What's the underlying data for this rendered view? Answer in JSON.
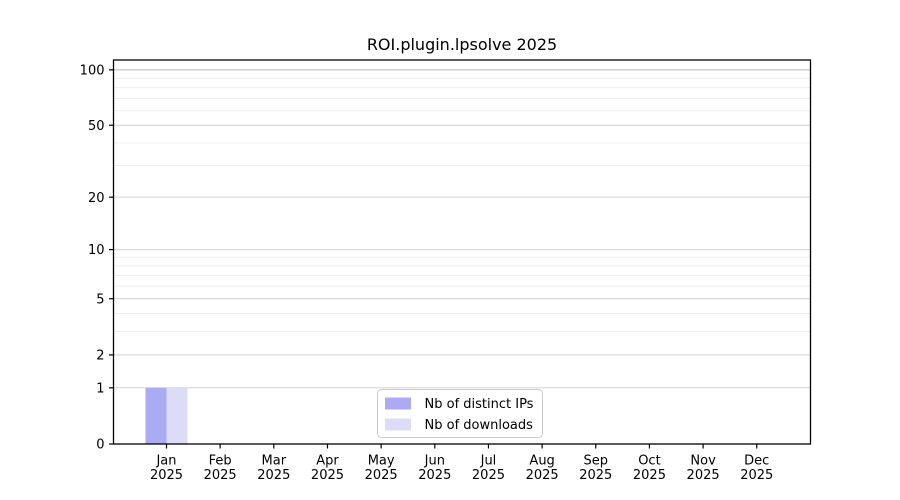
{
  "chart_data": {
    "type": "bar",
    "title": "ROI.plugin.lpsolve 2025",
    "categories": [
      {
        "month": "Jan",
        "year": "2025"
      },
      {
        "month": "Feb",
        "year": "2025"
      },
      {
        "month": "Mar",
        "year": "2025"
      },
      {
        "month": "Apr",
        "year": "2025"
      },
      {
        "month": "May",
        "year": "2025"
      },
      {
        "month": "Jun",
        "year": "2025"
      },
      {
        "month": "Jul",
        "year": "2025"
      },
      {
        "month": "Aug",
        "year": "2025"
      },
      {
        "month": "Sep",
        "year": "2025"
      },
      {
        "month": "Oct",
        "year": "2025"
      },
      {
        "month": "Nov",
        "year": "2025"
      },
      {
        "month": "Dec",
        "year": "2025"
      }
    ],
    "series": [
      {
        "name": "Nb of distinct IPs",
        "color": "#aaaaf5",
        "values": [
          1,
          0,
          0,
          0,
          0,
          0,
          0,
          0,
          0,
          0,
          0,
          0
        ]
      },
      {
        "name": "Nb of downloads",
        "color": "#dcdcf8",
        "values": [
          1,
          0,
          0,
          0,
          0,
          0,
          0,
          0,
          0,
          0,
          0,
          0
        ]
      }
    ],
    "xlabel": "",
    "ylabel": "",
    "y_axis": {
      "scale": "log1p",
      "ticks": [
        0,
        1,
        2,
        5,
        10,
        20,
        50,
        100
      ],
      "minor_gridlines": [
        3,
        4,
        6,
        7,
        8,
        9,
        30,
        40,
        60,
        70,
        80,
        90
      ],
      "ylim": [
        0,
        113
      ]
    },
    "legend": {
      "position": "bottom-center",
      "entries": [
        "Nb of distinct IPs",
        "Nb of downloads"
      ]
    },
    "colors": {
      "background": "#ffffff",
      "axis": "#000000",
      "text": "#000000",
      "grid_major": "#d0d0d0",
      "grid_emphasis": "#b6b6b6",
      "grid_minor": "#ececec",
      "legend_border": "#cccccc",
      "legend_background": "#ffffff"
    }
  }
}
